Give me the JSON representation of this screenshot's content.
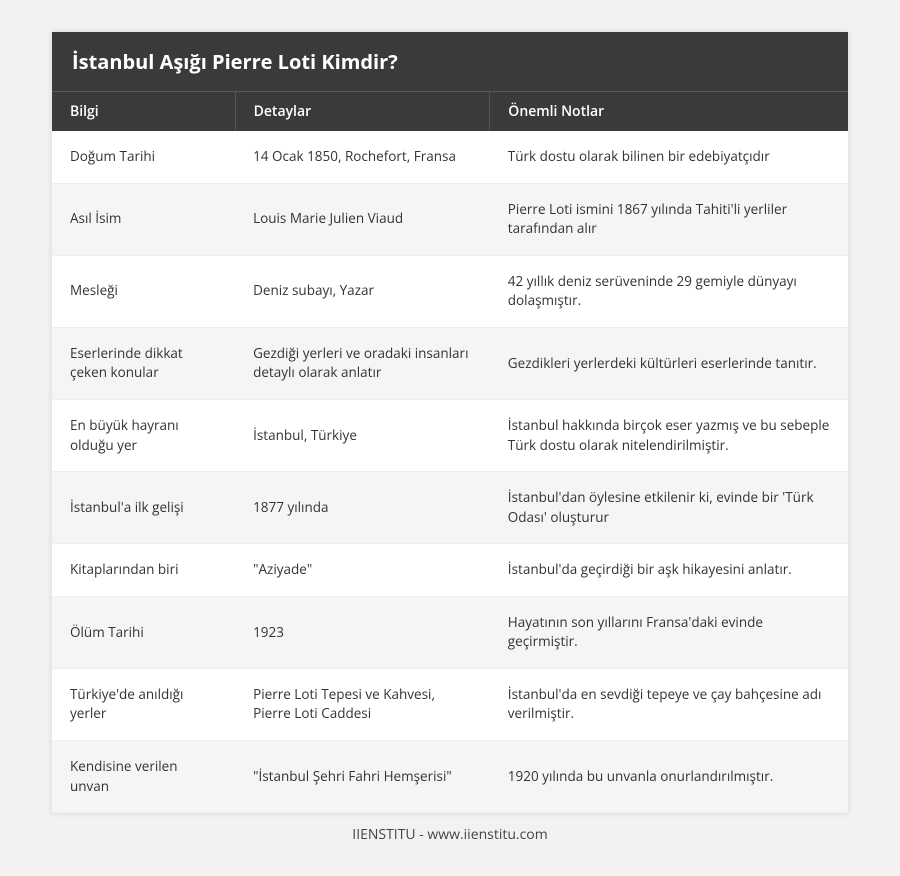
{
  "title": "İstanbul Aşığı Pierre Loti Kimdir?",
  "columns": [
    "Bilgi",
    "Detaylar",
    "Önemli Notlar"
  ],
  "rows": [
    {
      "info": "Doğum Tarihi",
      "details": "14 Ocak 1850, Rochefort, Fransa",
      "notes": "Türk dostu olarak bilinen bir edebiyatçıdır"
    },
    {
      "info": "Asıl İsim",
      "details": "Louis Marie Julien Viaud",
      "notes": "Pierre Loti ismini 1867 yılında Tahiti'li yerliler tarafından alır"
    },
    {
      "info": "Mesleği",
      "details": "Deniz subayı, Yazar",
      "notes": "42 yıllık deniz serüveninde 29 gemiyle dünyayı dolaşmıştır."
    },
    {
      "info": "Eserlerinde dikkat çeken konular",
      "details": "Gezdiği yerleri ve oradaki insanları detaylı olarak anlatır",
      "notes": "Gezdikleri yerlerdeki kültürleri eserlerinde tanıtır."
    },
    {
      "info": "En büyük hayranı olduğu yer",
      "details": "İstanbul, Türkiye",
      "notes": "İstanbul hakkında birçok eser yazmış ve bu sebeple Türk dostu olarak nitelendirilmiştir."
    },
    {
      "info": "İstanbul'a ilk gelişi",
      "details": "1877 yılında",
      "notes": "İstanbul'dan öylesine etkilenir ki, evinde bir 'Türk Odası' oluşturur"
    },
    {
      "info": "Kitaplarından biri",
      "details": "\"Aziyade\"",
      "notes": "İstanbul'da geçirdiği bir aşk hikayesini anlatır."
    },
    {
      "info": "Ölüm Tarihi",
      "details": "1923",
      "notes": "Hayatının son yıllarını Fransa'daki evinde geçirmiştir."
    },
    {
      "info": "Türkiye'de anıldığı yerler",
      "details": "Pierre Loti Tepesi ve Kahvesi, Pierre Loti Caddesi",
      "notes": "İstanbul'da en sevdiği tepeye ve çay bahçesine adı verilmiştir."
    },
    {
      "info": "Kendisine verilen unvan",
      "details": "\"İstanbul Şehri Fahri Hemşerisi\"",
      "notes": "1920 yılında bu unvanla onurlandırılmıştır."
    }
  ],
  "footer": "IIENSTITU - www.iienstitu.com",
  "colors": {
    "page_bg": "#f2f2f2",
    "header_bg": "#3a3a3a",
    "header_text": "#ffffff",
    "row_odd": "#ffffff",
    "row_even": "#f5f5f5",
    "text": "#333333"
  }
}
